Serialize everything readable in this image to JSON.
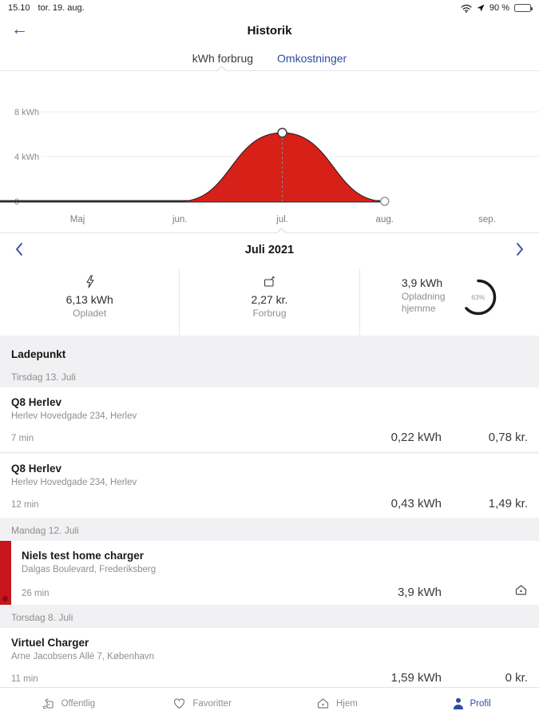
{
  "status_bar": {
    "time": "15.10",
    "date": "tor. 19. aug.",
    "battery_percent": "90 %",
    "icons": [
      "wifi-icon",
      "location-icon",
      "battery-icon"
    ]
  },
  "header": {
    "title": "Historik",
    "back_icon": "back-arrow-icon",
    "tabs": [
      {
        "label": "kWh forbrug",
        "active": true
      },
      {
        "label": "Omkostninger",
        "active": false
      }
    ]
  },
  "chart_data": {
    "type": "area",
    "title": "",
    "x": [
      "Maj",
      "jun.",
      "jul.",
      "aug.",
      "sep."
    ],
    "values": [
      0,
      0,
      6.13,
      0,
      null
    ],
    "unit": "kWh",
    "yticks": [
      {
        "v": 8,
        "label": "8 kWh"
      },
      {
        "v": 4,
        "label": "4 kWh"
      },
      {
        "v": 0,
        "label": "0"
      }
    ],
    "ylim": [
      0,
      8
    ],
    "grid": "horizontal",
    "legend": "none",
    "selected": {
      "month": "jul.",
      "index": 2,
      "value": 6.13
    },
    "series_end_index": 3,
    "fill_color": "#d62018",
    "line_color": "#1a1a1a",
    "baseline_color": "#3f3f3f"
  },
  "month_nav": {
    "label": "Juli 2021"
  },
  "stats": [
    {
      "icon": "bolt-icon",
      "value": "6,13 kWh",
      "label": "Opladet"
    },
    {
      "icon": "price-icon",
      "value": "2,27 kr.",
      "label": "Forbrug"
    },
    {
      "value": "3,9 kWh",
      "label": "Opladning hjemme",
      "percent": "63%"
    }
  ],
  "list": {
    "section_title": "Ladepunkt",
    "groups": [
      {
        "date": "Tirsdag 13. Juli",
        "entries": [
          {
            "name": "Q8 Herlev",
            "address": "Herlev Hovedgade 234, Herlev",
            "duration": "7 min",
            "energy": "0,22 kWh",
            "cost": "0,78 kr."
          },
          {
            "name": "Q8 Herlev",
            "address": "Herlev Hovedgade 234, Herlev",
            "duration": "12 min",
            "energy": "0,43 kWh",
            "cost": "1,49 kr."
          }
        ]
      },
      {
        "date": "Mandag 12. Juli",
        "entries": [
          {
            "name": "Niels test home charger",
            "address": "Dalgas Boulevard, Frederiksberg",
            "duration": "26 min",
            "energy": "3,9 kWh",
            "cost": "",
            "home_icon": true,
            "flagged": true
          }
        ]
      },
      {
        "date": "Torsdag 8. Juli",
        "entries": [
          {
            "name": "Virtuel Charger",
            "address": "Arne Jacobsens Allé 7, København",
            "duration": "11 min",
            "energy": "1,59 kWh",
            "cost": "0 kr."
          }
        ]
      }
    ]
  },
  "tabbar": [
    {
      "label": "Offentlig",
      "icon": "charger-icon",
      "active": false
    },
    {
      "label": "Favoritter",
      "icon": "heart-icon",
      "active": false
    },
    {
      "label": "Hjem",
      "icon": "home-icon",
      "active": false
    },
    {
      "label": "Profil",
      "icon": "profile-icon",
      "active": true
    }
  ],
  "colors": {
    "accent_blue": "#2b4ea0",
    "chart_red": "#d62018",
    "flag_red": "#c8151d"
  }
}
